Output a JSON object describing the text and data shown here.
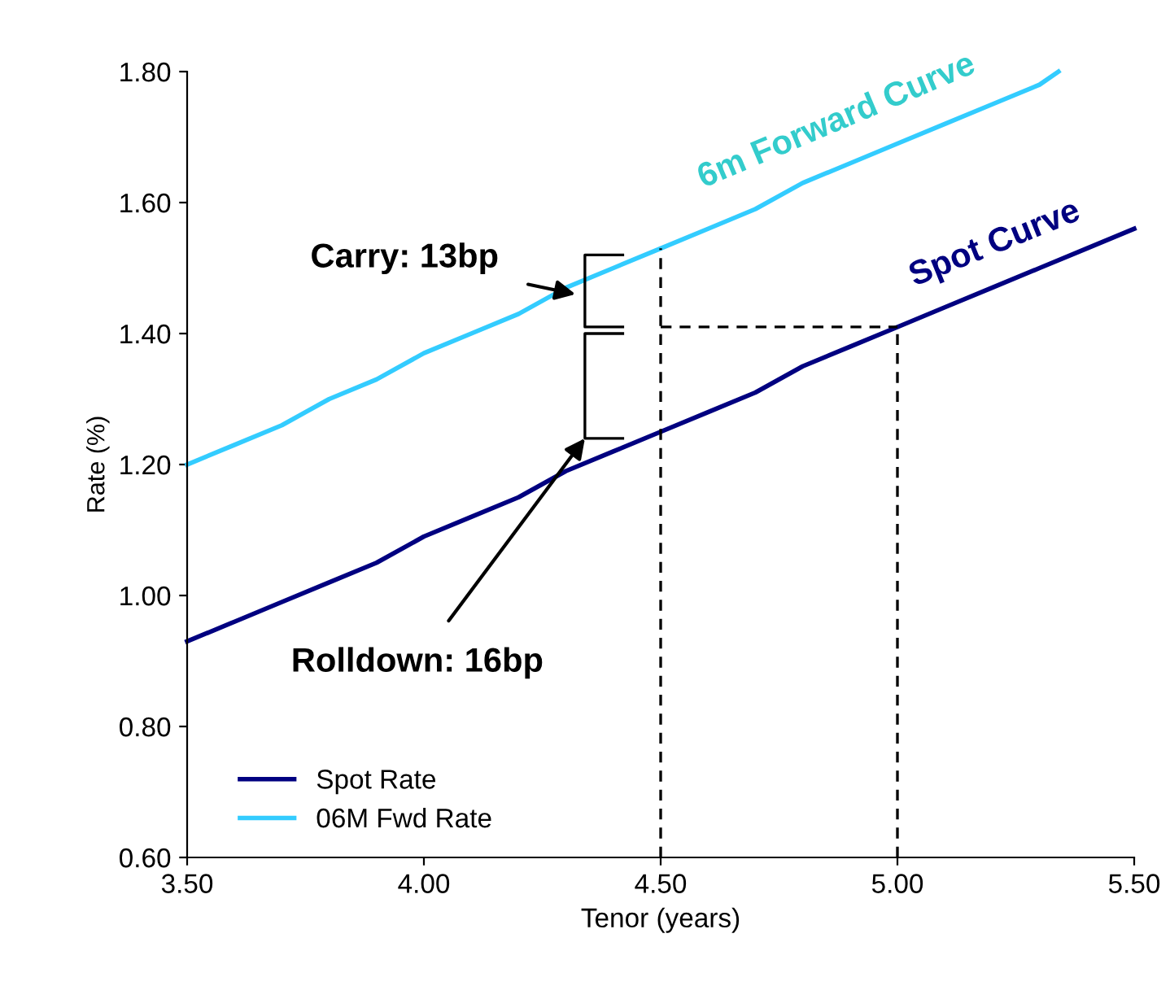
{
  "chart_data": {
    "type": "line",
    "xlabel": "Tenor (years)",
    "ylabel": "Rate (%)",
    "xlim": [
      3.5,
      5.5
    ],
    "xticks": [
      {
        "value": 3.5,
        "label": "3.50"
      },
      {
        "value": 4.0,
        "label": "4.00"
      },
      {
        "value": 4.5,
        "label": "4.50"
      },
      {
        "value": 5.0,
        "label": "5.00"
      },
      {
        "value": 5.5,
        "label": "5.50"
      }
    ],
    "ylim": [
      0.6,
      1.8
    ],
    "yticks": [
      {
        "value": 0.6,
        "label": "0.60"
      },
      {
        "value": 0.8,
        "label": "0.80"
      },
      {
        "value": 1.0,
        "label": "1.00"
      },
      {
        "value": 1.2,
        "label": "1.20"
      },
      {
        "value": 1.4,
        "label": "1.40"
      },
      {
        "value": 1.6,
        "label": "1.60"
      },
      {
        "value": 1.8,
        "label": "1.80"
      }
    ],
    "grid": false,
    "legend": "bottom left",
    "marker": "none",
    "series": [
      {
        "name": "Spot Rate",
        "color": "#000080",
        "line_style": "solid",
        "x": [
          3.5,
          3.6,
          3.7,
          3.8,
          3.9,
          4.0,
          4.1,
          4.2,
          4.3,
          4.4,
          4.5,
          4.6,
          4.7,
          4.8,
          4.9,
          5.0,
          5.1,
          5.2,
          5.3,
          5.4,
          5.5
        ],
        "values": [
          0.93,
          0.96,
          0.99,
          1.02,
          1.05,
          1.09,
          1.12,
          1.15,
          1.19,
          1.22,
          1.25,
          1.28,
          1.31,
          1.35,
          1.38,
          1.41,
          1.44,
          1.47,
          1.5,
          1.53,
          1.56
        ]
      },
      {
        "name": "06M Fwd Rate",
        "color": "#33ccff",
        "line_style": "solid",
        "x": [
          3.5,
          3.6,
          3.7,
          3.8,
          3.9,
          4.0,
          4.1,
          4.2,
          4.3,
          4.4,
          4.5,
          4.6,
          4.7,
          4.8,
          4.9,
          5.0,
          5.1,
          5.2,
          5.3,
          5.34
        ],
        "values": [
          1.2,
          1.23,
          1.26,
          1.3,
          1.33,
          1.37,
          1.4,
          1.43,
          1.47,
          1.5,
          1.53,
          1.56,
          1.59,
          1.63,
          1.66,
          1.69,
          1.72,
          1.75,
          1.78,
          1.8
        ]
      },
      {
        "color": "#000000",
        "line_style": "dashed",
        "x": [
          4.5,
          4.5
        ],
        "values": [
          0.6,
          1.53
        ]
      },
      {
        "color": "#000000",
        "line_style": "dashed",
        "x": [
          5.0,
          5.0
        ],
        "values": [
          0.6,
          1.41
        ]
      },
      {
        "color": "#000000",
        "line_style": "dashed",
        "x": [
          4.5,
          5.0
        ],
        "values": [
          1.41,
          1.41
        ]
      },
      {
        "color": "#000000",
        "line_style": "solid",
        "x": [
          4.42,
          4.34,
          4.34,
          4.42
        ],
        "values": [
          1.52,
          1.52,
          1.41,
          1.41
        ]
      },
      {
        "color": "#000000",
        "line_style": "solid",
        "x": [
          4.42,
          4.34,
          4.34,
          4.42
        ],
        "values": [
          1.4,
          1.4,
          1.24,
          1.24
        ]
      }
    ],
    "annotations": [
      {
        "text": "Carry: 13bp",
        "x": 4.32,
        "y": 1.46
      },
      {
        "text": "Rolldown: 16bp",
        "x": 4.34,
        "y": 1.24
      },
      "6m Forward Curve",
      "Spot Curve"
    ]
  }
}
